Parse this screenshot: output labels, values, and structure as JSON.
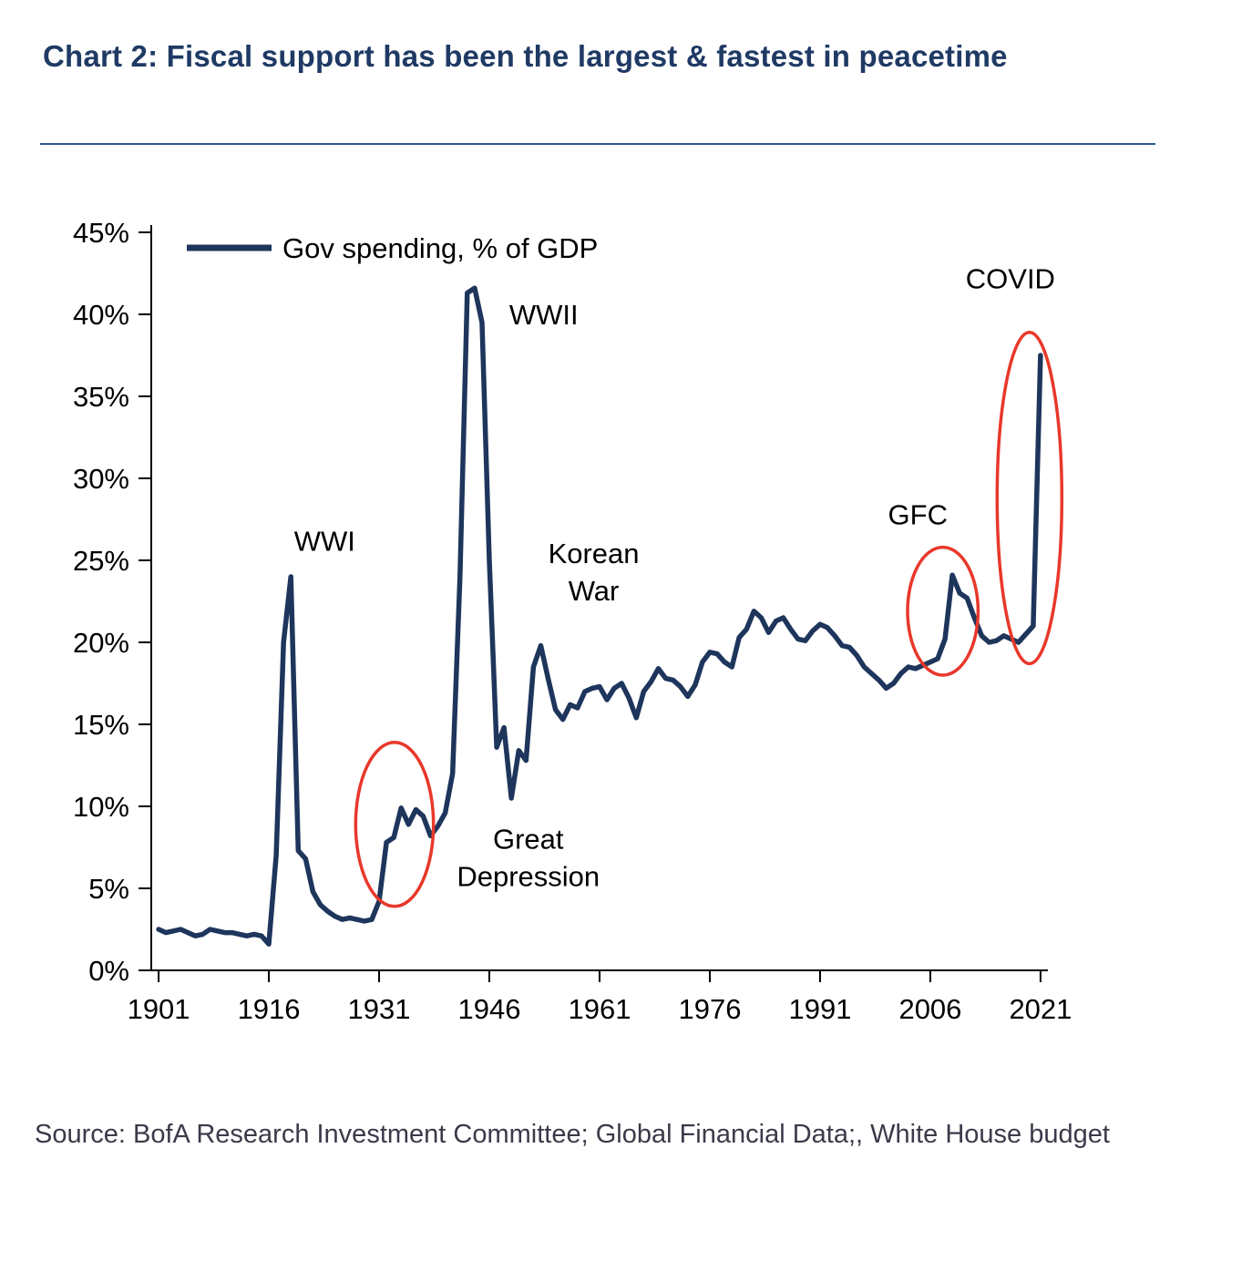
{
  "header": {
    "title": "Chart 2: Fiscal support has been the largest & fastest in peacetime"
  },
  "chart_data": {
    "type": "line",
    "title": "Chart 2: Fiscal support has been the largest & fastest in peacetime",
    "xlabel": "",
    "ylabel": "",
    "grid": false,
    "legend_position": "top-left",
    "legend": [
      {
        "label": "Gov spending, % of GDP",
        "color": "#1e355c"
      }
    ],
    "xlim": [
      1900,
      2022
    ],
    "ylim": [
      0,
      45
    ],
    "xticks": [
      1901,
      1916,
      1931,
      1946,
      1961,
      1976,
      1991,
      2006,
      2021
    ],
    "yticks": [
      0,
      5,
      10,
      15,
      20,
      25,
      30,
      35,
      40,
      45
    ],
    "ytick_labels": [
      "0%",
      "5%",
      "10%",
      "15%",
      "20%",
      "25%",
      "30%",
      "35%",
      "40%",
      "45%"
    ],
    "x": [
      1901,
      1902,
      1903,
      1904,
      1905,
      1906,
      1907,
      1908,
      1909,
      1910,
      1911,
      1912,
      1913,
      1914,
      1915,
      1916,
      1917,
      1918,
      1919,
      1920,
      1921,
      1922,
      1923,
      1924,
      1925,
      1926,
      1927,
      1928,
      1929,
      1930,
      1931,
      1932,
      1933,
      1934,
      1935,
      1936,
      1937,
      1938,
      1939,
      1940,
      1941,
      1942,
      1943,
      1944,
      1945,
      1946,
      1947,
      1948,
      1949,
      1950,
      1951,
      1952,
      1953,
      1954,
      1955,
      1956,
      1957,
      1958,
      1959,
      1960,
      1961,
      1962,
      1963,
      1964,
      1965,
      1966,
      1967,
      1968,
      1969,
      1970,
      1971,
      1972,
      1973,
      1974,
      1975,
      1976,
      1977,
      1978,
      1979,
      1980,
      1981,
      1982,
      1983,
      1984,
      1985,
      1986,
      1987,
      1988,
      1989,
      1990,
      1991,
      1992,
      1993,
      1994,
      1995,
      1996,
      1997,
      1998,
      1999,
      2000,
      2001,
      2002,
      2003,
      2004,
      2005,
      2006,
      2007,
      2008,
      2009,
      2010,
      2011,
      2012,
      2013,
      2014,
      2015,
      2016,
      2017,
      2018,
      2019,
      2020,
      2021
    ],
    "series": [
      {
        "name": "Gov spending, % of GDP",
        "color": "#1e355c",
        "values": [
          2.5,
          2.3,
          2.4,
          2.5,
          2.3,
          2.1,
          2.2,
          2.5,
          2.4,
          2.3,
          2.3,
          2.2,
          2.1,
          2.2,
          2.1,
          1.6,
          7.0,
          20.0,
          24.0,
          7.3,
          6.8,
          4.8,
          4.0,
          3.6,
          3.3,
          3.1,
          3.2,
          3.1,
          3.0,
          3.1,
          4.2,
          7.8,
          8.1,
          9.9,
          8.9,
          9.8,
          9.4,
          8.2,
          8.8,
          9.6,
          12.0,
          24.0,
          41.3,
          41.6,
          39.5,
          25.0,
          13.6,
          14.8,
          10.5,
          13.4,
          12.8,
          18.5,
          19.8,
          17.8,
          15.9,
          15.3,
          16.2,
          16.0,
          17.0,
          17.2,
          17.3,
          16.5,
          17.2,
          17.5,
          16.6,
          15.4,
          17.0,
          17.6,
          18.4,
          17.8,
          17.7,
          17.3,
          16.7,
          17.4,
          18.8,
          19.4,
          19.3,
          18.8,
          18.5,
          20.3,
          20.8,
          21.9,
          21.5,
          20.6,
          21.3,
          21.5,
          20.8,
          20.2,
          20.1,
          20.7,
          21.1,
          20.9,
          20.4,
          19.8,
          19.7,
          19.2,
          18.5,
          18.1,
          17.7,
          17.2,
          17.5,
          18.1,
          18.5,
          18.4,
          18.6,
          18.8,
          19.0,
          20.2,
          24.1,
          23.0,
          22.7,
          21.5,
          20.4,
          20.0,
          20.1,
          20.4,
          20.2,
          20.0,
          20.5,
          21.0,
          37.5
        ]
      }
    ],
    "annotations": [
      {
        "text": [
          "WWI"
        ],
        "year": 1923.6,
        "value": 26.2
      },
      {
        "text": [
          "WWII"
        ],
        "year": 1953.4,
        "value": 40.0
      },
      {
        "text": [
          "Korean",
          "War"
        ],
        "year": 1960.2,
        "value": 24.3
      },
      {
        "text": [
          "Great",
          "Depression"
        ],
        "year": 1951.3,
        "value": 6.9
      },
      {
        "text": [
          "GFC"
        ],
        "year": 2004.3,
        "value": 27.8
      },
      {
        "text": [
          "COVID"
        ],
        "year": 2016.9,
        "value": 42.2
      }
    ],
    "highlight_ellipses": [
      {
        "label": "Great Depression",
        "center_year": 1933.1,
        "center_value": 8.9,
        "radius_years": 5.3,
        "radius_value": 5.0,
        "color": "#e8382a"
      },
      {
        "label": "GFC",
        "center_year": 2007.7,
        "center_value": 21.9,
        "radius_years": 4.8,
        "radius_value": 3.9,
        "color": "#e8382a"
      },
      {
        "label": "COVID",
        "center_year": 2019.5,
        "center_value": 28.8,
        "radius_years": 4.4,
        "radius_value": 10.1,
        "color": "#e8382a"
      }
    ],
    "axis_color": "#000000"
  },
  "footer": {
    "source": "Source: BofA Research Investment Committee; Global Financial Data;, White House budget"
  },
  "colors": {
    "title": "#1f3a64",
    "divider": "#2f5597",
    "series_line": "#1e355c",
    "highlight": "#e8382a"
  }
}
